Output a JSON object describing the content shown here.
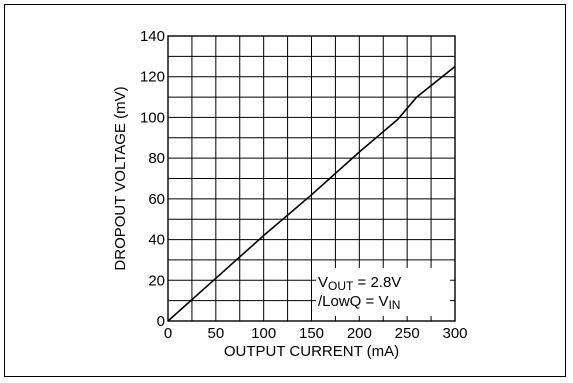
{
  "chart_data": {
    "type": "line",
    "xlabel": "OUTPUT CURRENT (mA)",
    "ylabel": "DROPOUT VOLTAGE (mV)",
    "xlim": [
      0,
      300
    ],
    "ylim": [
      0,
      140
    ],
    "x_ticks": [
      "0",
      "50",
      "100",
      "150",
      "200",
      "250",
      "300"
    ],
    "y_ticks": [
      "0",
      "20",
      "40",
      "60",
      "80",
      "100",
      "120",
      "140"
    ],
    "x_tick_values": [
      0,
      50,
      100,
      150,
      200,
      250,
      300
    ],
    "y_tick_values": [
      0,
      20,
      40,
      60,
      80,
      100,
      120,
      140
    ],
    "grid": true,
    "series": [
      {
        "x": [
          0,
          50,
          100,
          150,
          200,
          240,
          260,
          300
        ],
        "y": [
          0,
          21,
          42,
          62,
          83,
          99,
          110,
          125
        ]
      }
    ],
    "annotation": {
      "line1": {
        "v": "V",
        "sub": "OUT",
        "rest": " = 2.8V"
      },
      "line2": {
        "pre": "/LowQ = V",
        "sub": "IN"
      }
    }
  }
}
